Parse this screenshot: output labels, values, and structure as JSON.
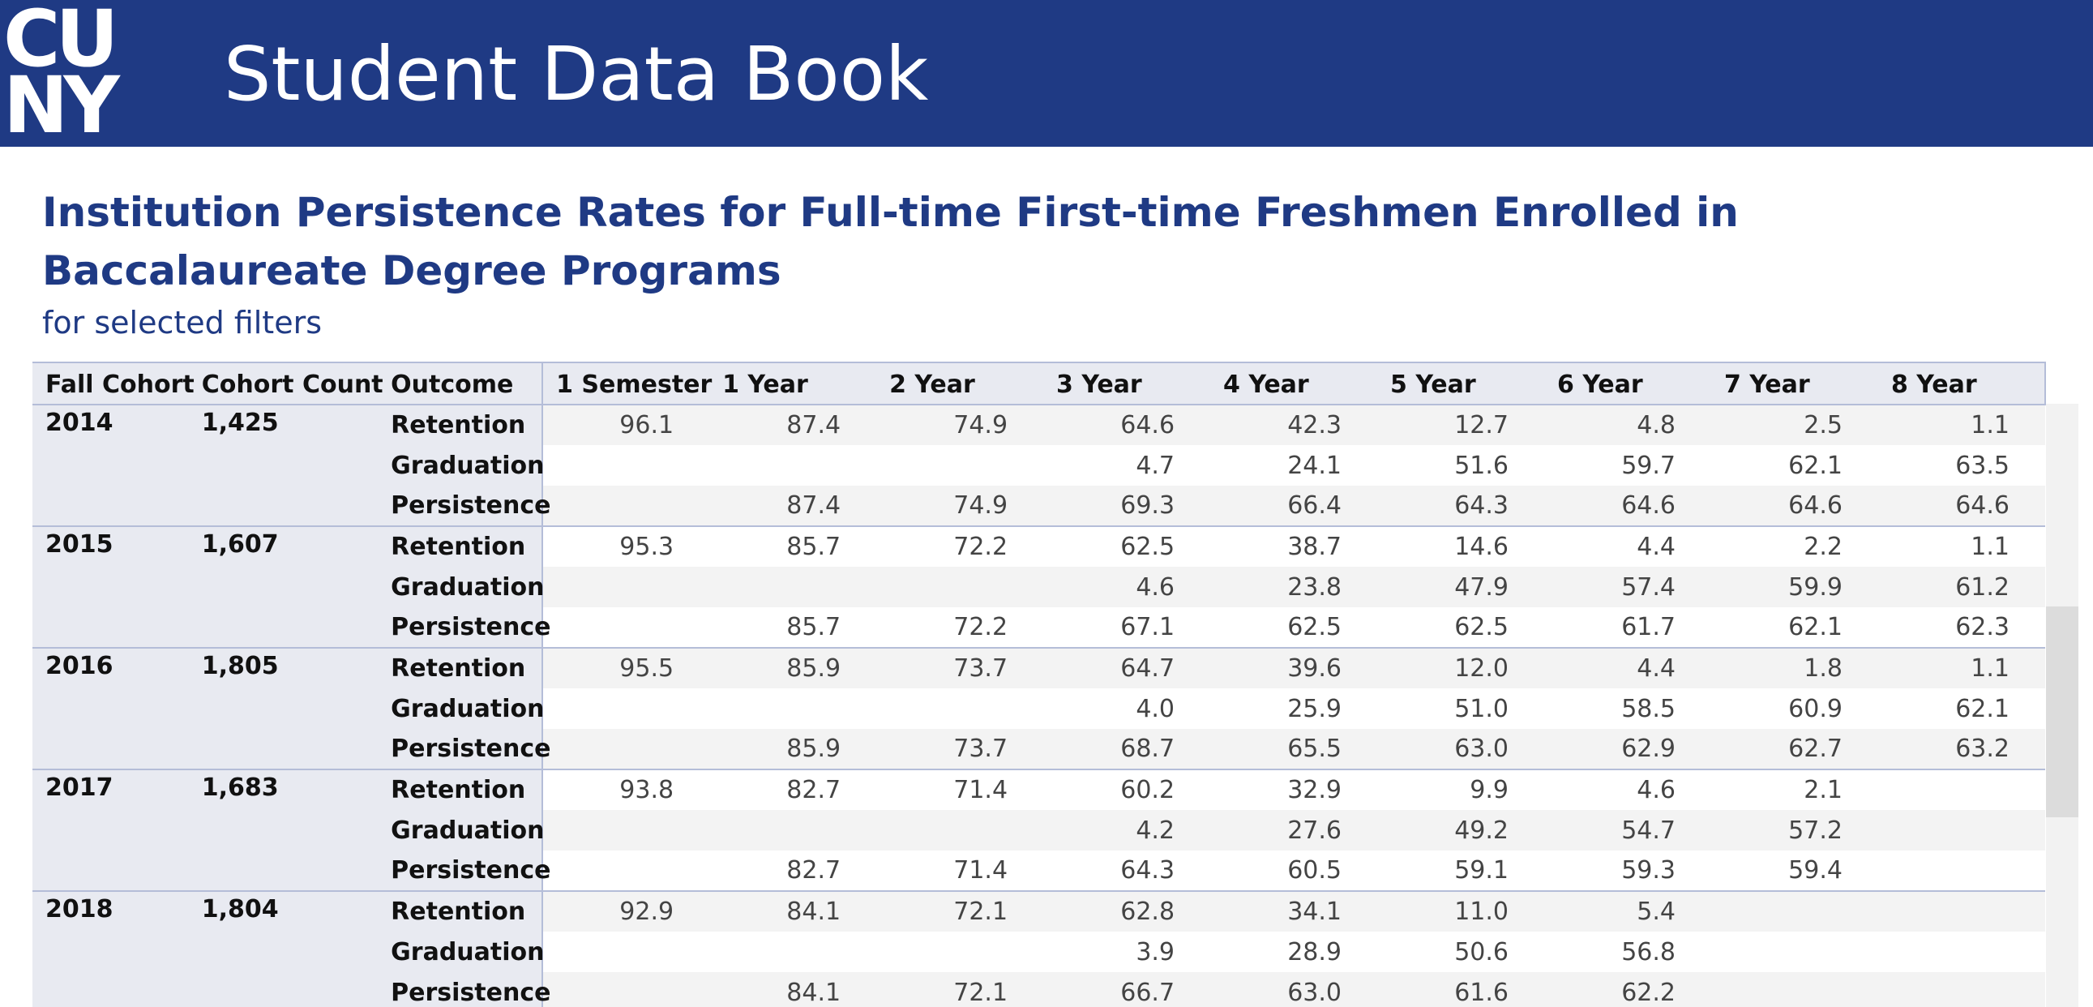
{
  "header": {
    "logo_top": "CU",
    "logo_bottom": "NY",
    "title": "Student Data Book"
  },
  "report": {
    "title": "Institution Persistence Rates for Full-time First-time Freshmen Enrolled in Baccalaureate Degree Programs",
    "subtitle": "for selected filters"
  },
  "table": {
    "columns": [
      "Fall Cohort",
      "Cohort Count",
      "Outcome",
      "1 Semester",
      "1 Year",
      "2 Year",
      "3 Year",
      "4 Year",
      "5 Year",
      "6 Year",
      "7 Year",
      "8 Year"
    ],
    "cohorts": [
      {
        "year": "2014",
        "count": "1,425",
        "rows": [
          {
            "outcome": "Retention",
            "values": [
              "96.1",
              "87.4",
              "74.9",
              "64.6",
              "42.3",
              "12.7",
              "4.8",
              "2.5",
              "1.1"
            ]
          },
          {
            "outcome": "Graduation",
            "values": [
              "",
              "",
              "",
              "4.7",
              "24.1",
              "51.6",
              "59.7",
              "62.1",
              "63.5"
            ]
          },
          {
            "outcome": "Persistence",
            "values": [
              "",
              "87.4",
              "74.9",
              "69.3",
              "66.4",
              "64.3",
              "64.6",
              "64.6",
              "64.6"
            ]
          }
        ]
      },
      {
        "year": "2015",
        "count": "1,607",
        "rows": [
          {
            "outcome": "Retention",
            "values": [
              "95.3",
              "85.7",
              "72.2",
              "62.5",
              "38.7",
              "14.6",
              "4.4",
              "2.2",
              "1.1"
            ]
          },
          {
            "outcome": "Graduation",
            "values": [
              "",
              "",
              "",
              "4.6",
              "23.8",
              "47.9",
              "57.4",
              "59.9",
              "61.2"
            ]
          },
          {
            "outcome": "Persistence",
            "values": [
              "",
              "85.7",
              "72.2",
              "67.1",
              "62.5",
              "62.5",
              "61.7",
              "62.1",
              "62.3"
            ]
          }
        ]
      },
      {
        "year": "2016",
        "count": "1,805",
        "rows": [
          {
            "outcome": "Retention",
            "values": [
              "95.5",
              "85.9",
              "73.7",
              "64.7",
              "39.6",
              "12.0",
              "4.4",
              "1.8",
              "1.1"
            ]
          },
          {
            "outcome": "Graduation",
            "values": [
              "",
              "",
              "",
              "4.0",
              "25.9",
              "51.0",
              "58.5",
              "60.9",
              "62.1"
            ]
          },
          {
            "outcome": "Persistence",
            "values": [
              "",
              "85.9",
              "73.7",
              "68.7",
              "65.5",
              "63.0",
              "62.9",
              "62.7",
              "63.2"
            ]
          }
        ]
      },
      {
        "year": "2017",
        "count": "1,683",
        "rows": [
          {
            "outcome": "Retention",
            "values": [
              "93.8",
              "82.7",
              "71.4",
              "60.2",
              "32.9",
              "9.9",
              "4.6",
              "2.1",
              ""
            ]
          },
          {
            "outcome": "Graduation",
            "values": [
              "",
              "",
              "",
              "4.2",
              "27.6",
              "49.2",
              "54.7",
              "57.2",
              ""
            ]
          },
          {
            "outcome": "Persistence",
            "values": [
              "",
              "82.7",
              "71.4",
              "64.3",
              "60.5",
              "59.1",
              "59.3",
              "59.4",
              ""
            ]
          }
        ]
      },
      {
        "year": "2018",
        "count": "1,804",
        "rows": [
          {
            "outcome": "Retention",
            "values": [
              "92.9",
              "84.1",
              "72.1",
              "62.8",
              "34.1",
              "11.0",
              "5.4",
              "",
              ""
            ]
          },
          {
            "outcome": "Graduation",
            "values": [
              "",
              "",
              "",
              "3.9",
              "28.9",
              "50.6",
              "56.8",
              "",
              ""
            ]
          },
          {
            "outcome": "Persistence",
            "values": [
              "",
              "84.1",
              "72.1",
              "66.7",
              "63.0",
              "61.6",
              "62.2",
              "",
              ""
            ]
          }
        ]
      }
    ]
  }
}
